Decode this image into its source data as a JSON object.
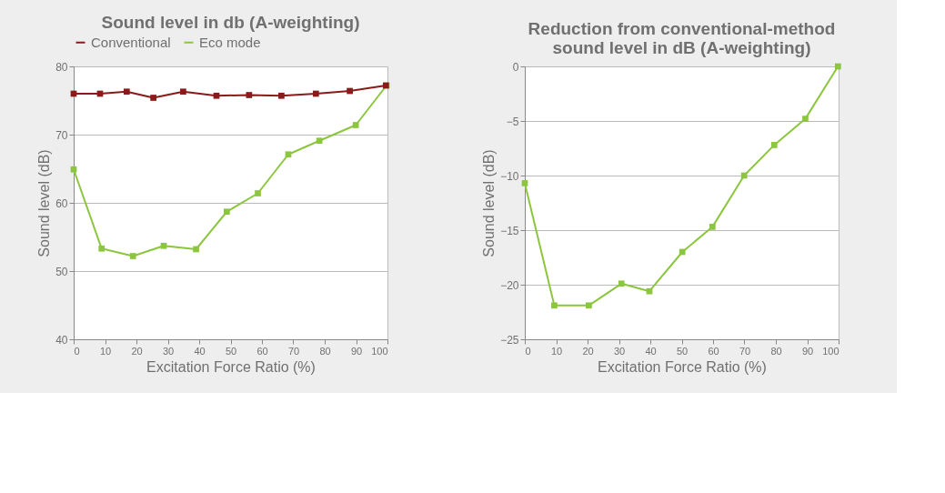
{
  "chart_data": [
    {
      "type": "line",
      "title": "Sound level in db (A-weighting)",
      "xlabel": "Excitation Force Ratio (%)",
      "ylabel": "Sound level (dB)",
      "xlim": [
        0,
        100
      ],
      "xticks": [
        0,
        10,
        20,
        30,
        40,
        50,
        60,
        70,
        80,
        90,
        100
      ],
      "ylim": [
        40,
        80
      ],
      "yticks": [
        40,
        50,
        60,
        70,
        80
      ],
      "grid": "y",
      "legend": "top",
      "marker": "square",
      "line_style": "solid",
      "series": [
        {
          "name": "Conventional",
          "color": "#8b1a1a",
          "x": [
            0,
            8.4,
            16.9,
            25.4,
            34.9,
            45.5,
            55.9,
            66.2,
            77.2,
            88.0,
            99.5
          ],
          "values": [
            76.0,
            76.0,
            76.3,
            75.4,
            76.3,
            75.7,
            75.8,
            75.7,
            76.0,
            76.4,
            77.2
          ]
        },
        {
          "name": "Eco mode",
          "color": "#8cc63f",
          "x": [
            0,
            8.9,
            18.9,
            28.7,
            39.0,
            48.8,
            58.7,
            68.4,
            78.3,
            89.9,
            99.7
          ],
          "values": [
            64.9,
            53.3,
            52.2,
            53.7,
            53.2,
            58.7,
            61.4,
            67.1,
            69.1,
            71.4,
            77.2
          ]
        }
      ]
    },
    {
      "type": "line",
      "title": [
        "Reduction from conventional-method",
        "sound level in dB (A-weighting)"
      ],
      "xlabel": "Excitation Force Ratio (%)",
      "ylabel": "Sound level (dB)",
      "xlim": [
        0,
        100
      ],
      "xticks": [
        0,
        10,
        20,
        30,
        40,
        50,
        60,
        70,
        80,
        90,
        100
      ],
      "ylim": [
        -25,
        0
      ],
      "yticks": [
        -25,
        -20,
        -15,
        -10,
        -5,
        0
      ],
      "grid": "y",
      "marker": "square",
      "line_style": "solid",
      "series": [
        {
          "color": "#8cc63f",
          "x": [
            0,
            9.4,
            20.4,
            30.8,
            39.7,
            50.2,
            59.8,
            69.9,
            79.5,
            89.4,
            99.8
          ],
          "values": [
            -10.7,
            -21.9,
            -21.9,
            -19.9,
            -20.6,
            -17.0,
            -14.7,
            -10.0,
            -7.2,
            -4.8,
            0.0
          ]
        }
      ]
    }
  ]
}
